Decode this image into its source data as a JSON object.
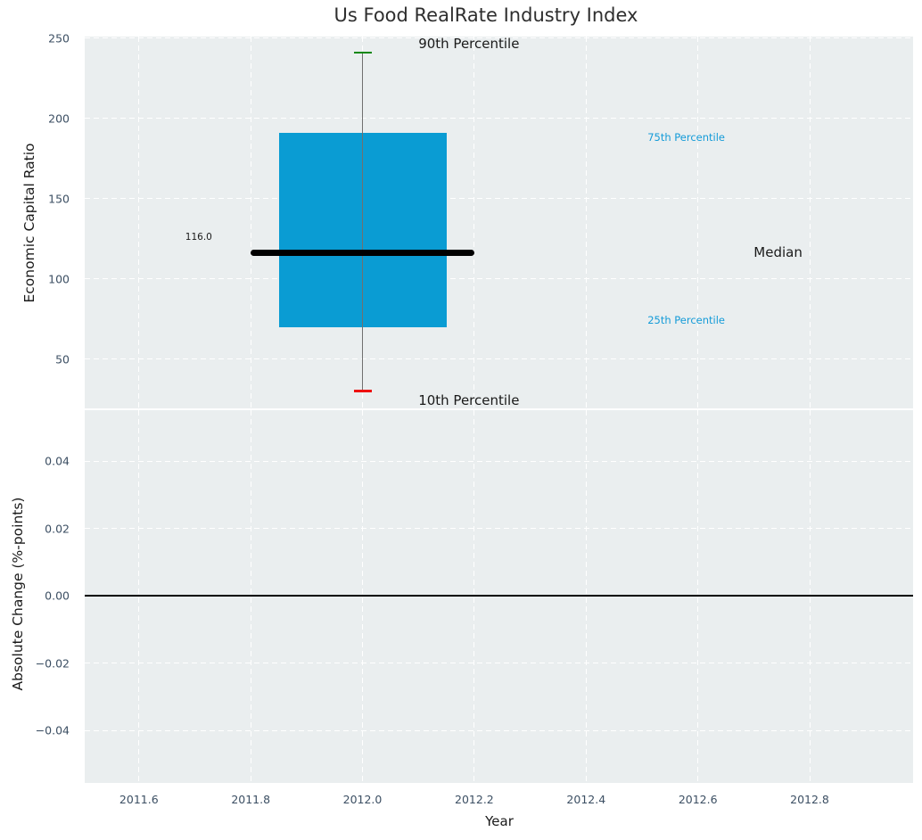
{
  "chart_data": {
    "type": "boxplot",
    "title": "Us Food RealRate Industry Index",
    "xlabel": "Year",
    "xlim": [
      2011.503,
      2012.985
    ],
    "xticks": [
      2011.6,
      2011.8,
      2012.0,
      2012.2,
      2012.4,
      2012.6,
      2012.8
    ],
    "xtick_labels": [
      "2011.6",
      "2011.8",
      "2012.0",
      "2012.2",
      "2012.4",
      "2012.6",
      "2012.8"
    ],
    "grid": true,
    "panels": [
      {
        "ylabel": "Economic Capital Ratio",
        "ylim": [
          19.3,
          250.9
        ],
        "yticks": [
          50,
          100,
          150,
          200,
          250
        ],
        "ytick_labels": [
          "50",
          "100",
          "150",
          "200",
          "250"
        ],
        "box": {
          "x": 2012.0,
          "p10": 30,
          "p25": 70,
          "median": 116,
          "p75": 191,
          "p90": 241,
          "box_half_width_years": 0.15,
          "median_half_width_years": 0.2,
          "cap_half_width_years": 0.016
        },
        "annotations": [
          {
            "text": "90th Percentile",
            "x": 2012.1,
            "y": 246.5,
            "size": 15,
            "color": "#1a1a1a"
          },
          {
            "text": "75th Percentile",
            "x": 2012.51,
            "y": 188.0,
            "size": 11.5,
            "color": "#149bd8"
          },
          {
            "text": "116.0",
            "x": 2011.683,
            "y": 125.8,
            "size": 10.5,
            "color": "#1a1a1a"
          },
          {
            "text": "Median",
            "x": 2012.7,
            "y": 116.3,
            "size": 15,
            "color": "#1a1a1a"
          },
          {
            "text": "25th Percentile",
            "x": 2012.51,
            "y": 74.2,
            "size": 11.5,
            "color": "#149bd8"
          },
          {
            "text": "10th Percentile",
            "x": 2012.1,
            "y": 24.4,
            "size": 15,
            "color": "#1a1a1a"
          }
        ]
      },
      {
        "ylabel": "Absolute Change (%-points)",
        "ylim": [
          -0.0556,
          0.0551
        ],
        "yticks": [
          -0.04,
          -0.02,
          0.0,
          0.02,
          0.04
        ],
        "ytick_labels": [
          "−0.04",
          "−0.02",
          "0.00",
          "0.02",
          "0.04"
        ],
        "zero_line": 0.0
      }
    ],
    "style": {
      "axes_bg": "#eaeeef",
      "grid_color": "#ffffff",
      "box_fill": "#0a9cd3",
      "median_color": "#000000",
      "whisker_color": "#707070",
      "cap_upper_color": "#0e870e",
      "cap_lower_color": "#ee1111",
      "zero_line_color": "#000000",
      "tick_label_color": "#3c4f63",
      "title_color": "#2e2e2e"
    }
  }
}
